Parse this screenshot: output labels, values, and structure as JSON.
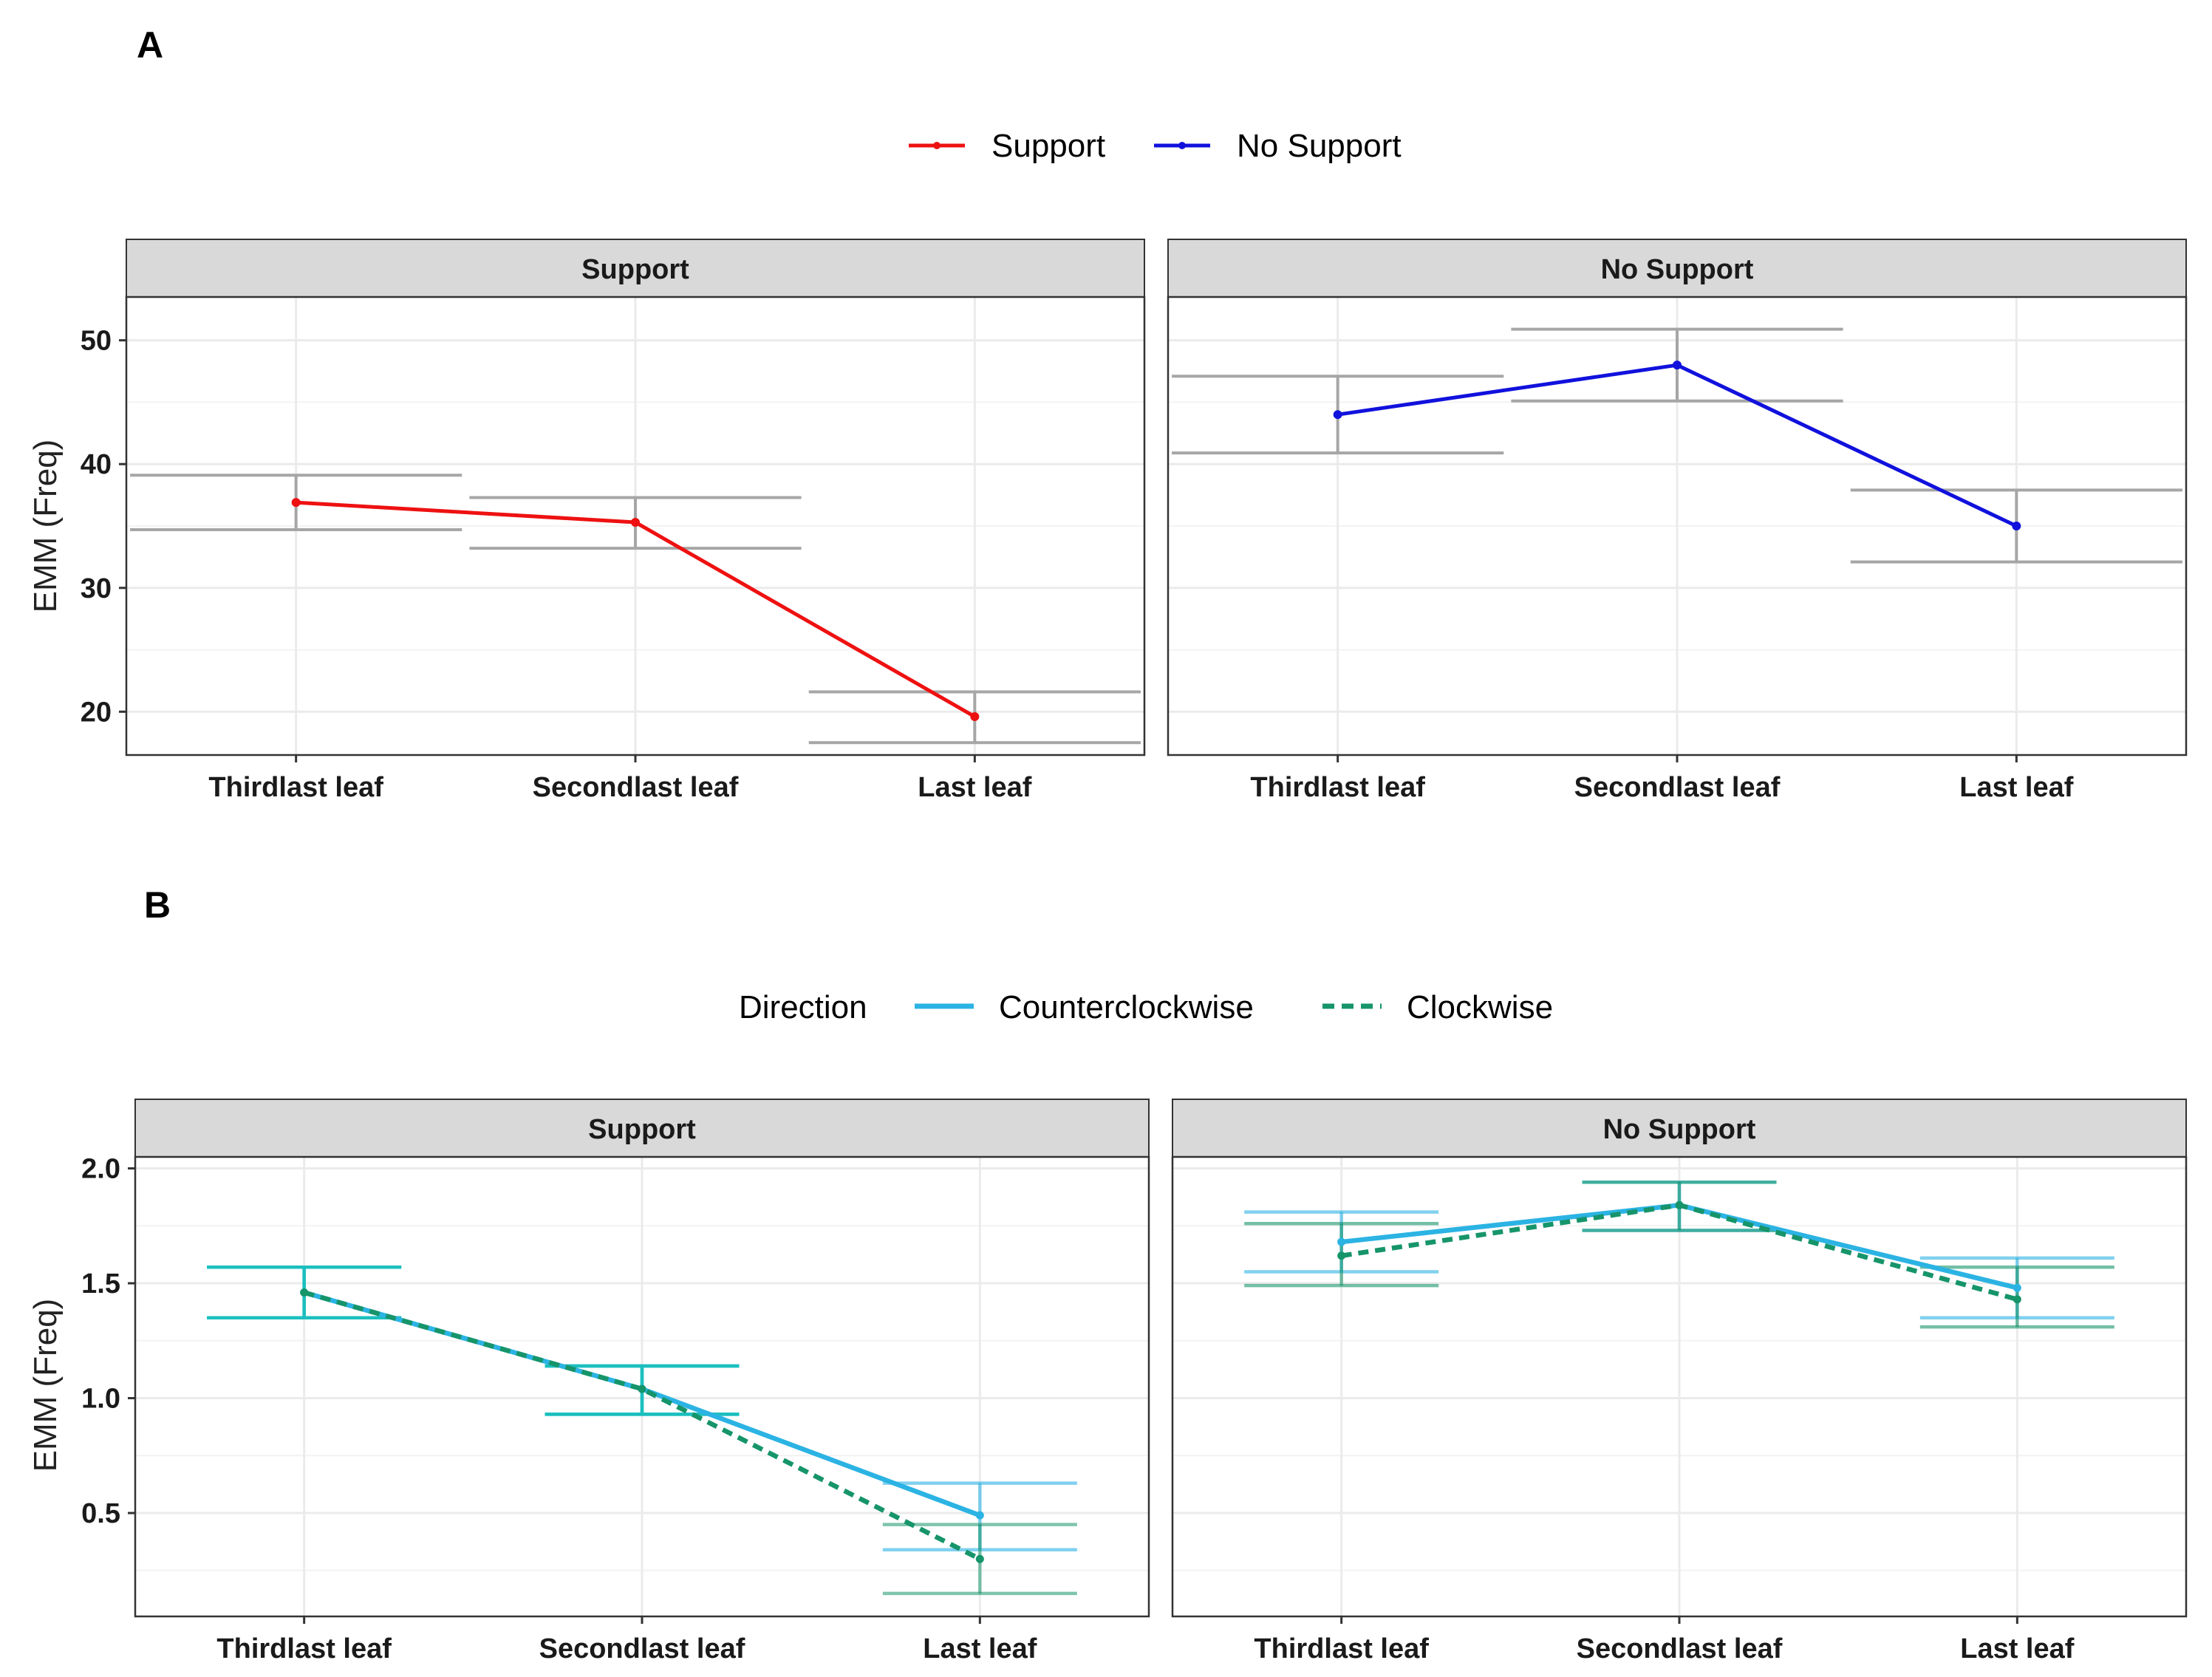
{
  "colors": {
    "support": "#ee1111",
    "no_support": "#1111dd",
    "counterclockwise": "#2bb3e3",
    "clockwise": "#16946a",
    "errorbar_a": "#a6a6a6",
    "errorbar_b": "#1cbfbf",
    "strip_bg": "#d9d9d9",
    "grid": "#ebebeb"
  },
  "chart_data": [
    {
      "panel_label": "A",
      "type": "line",
      "ylabel": "EMM (Freq)",
      "ylim": [
        16.5,
        53.5
      ],
      "yticks": [
        20,
        30,
        40,
        50
      ],
      "categories": [
        "Thirdlast leaf",
        "Secondlast leaf",
        "Last leaf"
      ],
      "legend": {
        "title": "",
        "position": "top",
        "entries": [
          "Support",
          "No Support"
        ]
      },
      "facets": [
        {
          "strip": "Support",
          "series": [
            {
              "name": "Support",
              "values": [
                36.9,
                35.3,
                19.6
              ],
              "lower": [
                34.7,
                33.2,
                17.5
              ],
              "upper": [
                39.1,
                37.3,
                21.6
              ]
            }
          ]
        },
        {
          "strip": "No Support",
          "series": [
            {
              "name": "No Support",
              "values": [
                44.0,
                48.0,
                35.0
              ],
              "lower": [
                40.9,
                45.1,
                32.1
              ],
              "upper": [
                47.1,
                50.9,
                37.9
              ]
            }
          ]
        }
      ]
    },
    {
      "panel_label": "B",
      "type": "line",
      "ylabel": "EMM (Freq)",
      "ylim": [
        0.05,
        2.05
      ],
      "yticks": [
        0.5,
        1.0,
        1.5,
        2.0
      ],
      "ytick_labels": [
        "0.5",
        "1.0",
        "1.5",
        "2.0"
      ],
      "categories": [
        "Thirdlast leaf",
        "Secondlast leaf",
        "Last leaf"
      ],
      "legend": {
        "title": "Direction",
        "position": "top",
        "entries": [
          "Counterclockwise",
          "Clockwise"
        ]
      },
      "facets": [
        {
          "strip": "Support",
          "series": [
            {
              "name": "Counterclockwise",
              "values": [
                1.46,
                1.04,
                0.49
              ],
              "lower": [
                1.35,
                0.93,
                0.34
              ],
              "upper": [
                1.57,
                1.14,
                0.63
              ]
            },
            {
              "name": "Clockwise",
              "values": [
                1.46,
                1.04,
                0.3
              ],
              "lower": [
                1.35,
                0.93,
                0.15
              ],
              "upper": [
                1.57,
                1.14,
                0.45
              ]
            }
          ]
        },
        {
          "strip": "No Support",
          "series": [
            {
              "name": "Counterclockwise",
              "values": [
                1.68,
                1.84,
                1.48
              ],
              "lower": [
                1.55,
                1.73,
                1.35
              ],
              "upper": [
                1.81,
                1.94,
                1.61
              ]
            },
            {
              "name": "Clockwise",
              "values": [
                1.62,
                1.84,
                1.43
              ],
              "lower": [
                1.49,
                1.73,
                1.31
              ],
              "upper": [
                1.76,
                1.94,
                1.57
              ]
            }
          ]
        }
      ]
    }
  ]
}
